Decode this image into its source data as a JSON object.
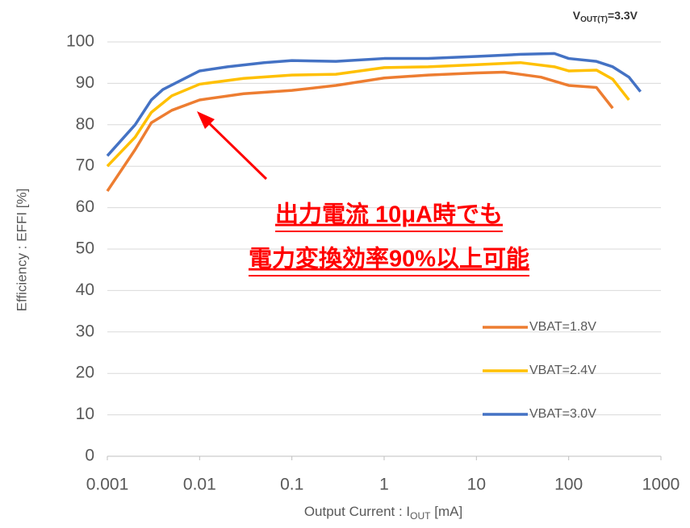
{
  "chart_data": {
    "type": "line",
    "title": [
      "V",
      "OUT(T)",
      "=3.3V"
    ],
    "xlabel": [
      "Output Current : I",
      "OUT",
      " [mA]"
    ],
    "ylabel": "Efficiency : EFFI [%]",
    "annotations": [
      "出力電流 10μA時でも",
      "電力変換効率90%以上可能"
    ],
    "annotation_color": "#ff0000",
    "xscale": "log",
    "xlim": [
      0.001,
      1000
    ],
    "xticks": [
      0.001,
      0.01,
      0.1,
      1,
      10,
      100,
      1000
    ],
    "ylim": [
      0,
      100
    ],
    "yticks": [
      0,
      10,
      20,
      30,
      40,
      50,
      60,
      70,
      80,
      90,
      100
    ],
    "grid": true,
    "legend": "lower right",
    "series": [
      {
        "name": "VBAT=1.8V",
        "color": "#ed7d31",
        "x": [
          0.001,
          0.002,
          0.003,
          0.005,
          0.01,
          0.03,
          0.1,
          0.3,
          1,
          3,
          10,
          20,
          50,
          100,
          200,
          300
        ],
        "values": [
          64,
          74,
          80.5,
          83.5,
          86,
          87.5,
          88.3,
          89.5,
          91.3,
          92,
          92.5,
          92.7,
          91.5,
          89.5,
          89,
          84
        ]
      },
      {
        "name": "VBAT=2.4V",
        "color": "#ffc000",
        "x": [
          0.001,
          0.002,
          0.003,
          0.005,
          0.01,
          0.03,
          0.1,
          0.3,
          1,
          3,
          10,
          30,
          70,
          100,
          200,
          300,
          450
        ],
        "values": [
          70,
          77,
          83,
          87,
          89.8,
          91.2,
          92,
          92.2,
          93.8,
          94,
          94.5,
          95,
          94,
          93,
          93.2,
          91,
          86
        ]
      },
      {
        "name": "VBAT=3.0V",
        "color": "#4472c4",
        "x": [
          0.001,
          0.002,
          0.003,
          0.004,
          0.006,
          0.01,
          0.02,
          0.05,
          0.1,
          0.3,
          1,
          3,
          10,
          30,
          70,
          100,
          200,
          300,
          450,
          600
        ],
        "values": [
          72.5,
          80,
          86,
          88.5,
          90.5,
          93,
          94,
          95,
          95.5,
          95.3,
          96,
          96,
          96.5,
          97,
          97.2,
          96,
          95.3,
          94,
          91.5,
          88
        ]
      }
    ]
  }
}
